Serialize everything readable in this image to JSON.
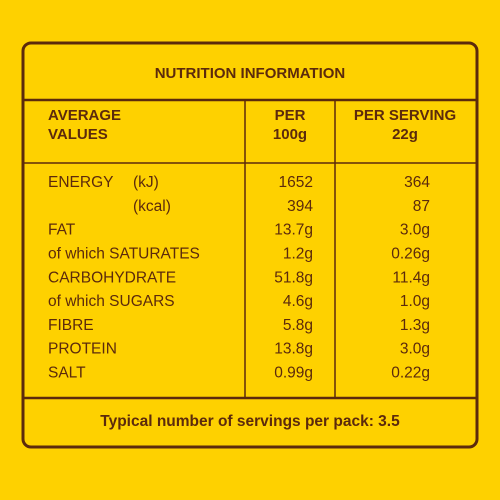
{
  "table": {
    "title": "NUTRITION INFORMATION",
    "header": [
      [
        "AVERAGE",
        "VALUES"
      ],
      [
        "PER",
        "100g"
      ],
      [
        "PER SERVING",
        "22g"
      ]
    ],
    "rows": [
      {
        "label": "ENERGY",
        "unit": "(kJ)",
        "per_100g": "1652",
        "per_serving": "364"
      },
      {
        "unit": "(kcal)",
        "per_100g": "394",
        "per_serving": "87"
      },
      {
        "label": "FAT",
        "per_100g": "13.7g",
        "per_serving": "3.0g"
      },
      {
        "label": "of which SATURATES",
        "per_100g": "1.2g",
        "per_serving": "0.26g"
      },
      {
        "label": "CARBOHYDRATE",
        "per_100g": "51.8g",
        "per_serving": "11.4g"
      },
      {
        "label": "of which SUGARS",
        "per_100g": "4.6g",
        "per_serving": "1.0g"
      },
      {
        "label": "FIBRE",
        "per_100g": "5.8g",
        "per_serving": "1.3g"
      },
      {
        "label": "PROTEIN",
        "per_100g": "13.8g",
        "per_serving": "3.0g"
      },
      {
        "label": "SALT",
        "per_100g": "0.99g",
        "per_serving": "0.22g"
      }
    ],
    "footer": "Typical number of servings per pack: 3.5"
  }
}
